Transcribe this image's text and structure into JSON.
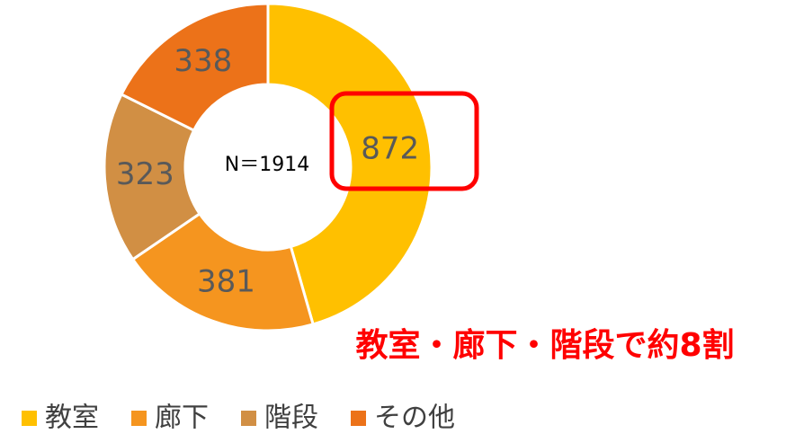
{
  "chart_data": {
    "type": "donut",
    "categories": [
      "教室",
      "廊下",
      "階段",
      "その他"
    ],
    "values": [
      872,
      381,
      323,
      338
    ],
    "colors": [
      "#FFC000",
      "#F5951F",
      "#D18F44",
      "#EC7219"
    ],
    "center_label": "N＝1914",
    "annotation": "教室・廊下・階段で約8割",
    "legend": "bottom-left"
  }
}
